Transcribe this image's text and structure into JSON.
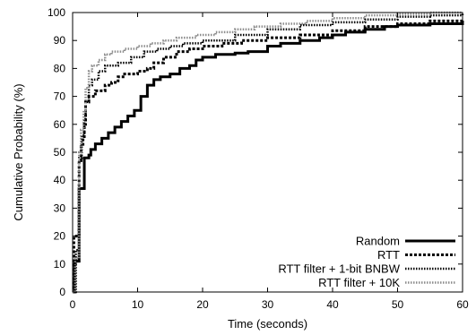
{
  "chart_data": {
    "type": "line",
    "title": "",
    "xlabel": "Time (seconds)",
    "ylabel": "Cumulative Probability (%)",
    "xlim": [
      0,
      60
    ],
    "ylim": [
      0,
      100
    ],
    "xticks": [
      0,
      10,
      20,
      30,
      40,
      50,
      60
    ],
    "yticks": [
      0,
      10,
      20,
      30,
      40,
      50,
      60,
      70,
      80,
      90,
      100
    ],
    "grid": false,
    "legend_position": "bottom-right",
    "series": [
      {
        "name": "Random",
        "style": "solid",
        "color": "#000000",
        "points": [
          [
            0,
            0
          ],
          [
            0.3,
            11
          ],
          [
            0.8,
            11
          ],
          [
            1,
            37
          ],
          [
            1.6,
            37
          ],
          [
            1.8,
            48
          ],
          [
            2.5,
            49
          ],
          [
            2.8,
            51
          ],
          [
            3.5,
            53
          ],
          [
            4.5,
            55
          ],
          [
            5.5,
            57
          ],
          [
            6.5,
            59
          ],
          [
            7.5,
            61
          ],
          [
            8.5,
            63
          ],
          [
            9.5,
            65
          ],
          [
            10.5,
            70
          ],
          [
            11.5,
            74
          ],
          [
            12.5,
            76
          ],
          [
            13.5,
            77
          ],
          [
            15,
            78
          ],
          [
            16.5,
            80
          ],
          [
            18,
            81
          ],
          [
            19,
            83
          ],
          [
            20,
            84
          ],
          [
            22,
            85
          ],
          [
            25,
            85.5
          ],
          [
            27,
            86
          ],
          [
            30,
            88
          ],
          [
            32,
            89
          ],
          [
            35,
            90
          ],
          [
            38,
            91
          ],
          [
            40,
            92
          ],
          [
            42,
            93
          ],
          [
            45,
            94
          ],
          [
            48,
            95
          ],
          [
            50,
            95.5
          ],
          [
            55,
            96
          ],
          [
            60,
            97
          ]
        ]
      },
      {
        "name": "RTT",
        "style": "dashed",
        "color": "#000000",
        "points": [
          [
            0,
            0
          ],
          [
            0.2,
            20
          ],
          [
            0.8,
            20
          ],
          [
            1,
            47
          ],
          [
            1.3,
            52
          ],
          [
            1.6,
            55
          ],
          [
            1.8,
            60
          ],
          [
            2,
            68
          ],
          [
            2.5,
            70
          ],
          [
            3.5,
            72
          ],
          [
            5,
            74
          ],
          [
            6,
            75
          ],
          [
            7,
            77
          ],
          [
            8,
            78
          ],
          [
            10,
            79
          ],
          [
            11.5,
            80
          ],
          [
            12.5,
            82
          ],
          [
            14,
            84
          ],
          [
            16,
            86
          ],
          [
            18,
            87
          ],
          [
            20,
            88
          ],
          [
            23,
            89
          ],
          [
            26,
            90
          ],
          [
            30,
            91
          ],
          [
            35,
            92
          ],
          [
            40,
            93.5
          ],
          [
            45,
            95
          ],
          [
            50,
            96
          ],
          [
            55,
            97
          ],
          [
            60,
            97.5
          ]
        ]
      },
      {
        "name": "RTT filter + 1-bit BNBW",
        "style": "dotted",
        "color": "#000000",
        "points": [
          [
            0,
            0
          ],
          [
            0.5,
            15
          ],
          [
            1,
            48
          ],
          [
            1.4,
            56
          ],
          [
            1.8,
            62
          ],
          [
            2,
            68
          ],
          [
            2.5,
            74
          ],
          [
            3,
            76
          ],
          [
            4,
            79
          ],
          [
            5,
            81
          ],
          [
            7,
            82
          ],
          [
            9,
            84
          ],
          [
            11,
            86
          ],
          [
            13,
            87
          ],
          [
            15,
            88
          ],
          [
            17,
            89
          ],
          [
            20,
            90
          ],
          [
            25,
            92
          ],
          [
            30,
            94
          ],
          [
            35,
            95.5
          ],
          [
            40,
            96.5
          ],
          [
            45,
            97.5
          ],
          [
            50,
            98.5
          ],
          [
            55,
            99
          ],
          [
            60,
            99.5
          ]
        ]
      },
      {
        "name": "RTT filter + 10K",
        "style": "dotted",
        "color": "#8c8c8c",
        "points": [
          [
            0,
            0
          ],
          [
            0.4,
            12
          ],
          [
            1,
            50
          ],
          [
            1.3,
            58
          ],
          [
            1.7,
            65
          ],
          [
            2,
            73
          ],
          [
            2.5,
            79
          ],
          [
            3,
            81
          ],
          [
            4,
            83
          ],
          [
            5,
            85
          ],
          [
            6,
            86
          ],
          [
            8,
            87
          ],
          [
            10,
            88
          ],
          [
            12,
            89
          ],
          [
            14,
            90
          ],
          [
            16,
            91
          ],
          [
            19,
            92
          ],
          [
            22,
            93
          ],
          [
            25,
            94
          ],
          [
            28,
            95
          ],
          [
            32,
            96
          ],
          [
            36,
            97
          ],
          [
            40,
            98
          ],
          [
            45,
            99
          ],
          [
            50,
            99.5
          ],
          [
            55,
            100
          ],
          [
            60,
            100
          ]
        ]
      }
    ]
  }
}
